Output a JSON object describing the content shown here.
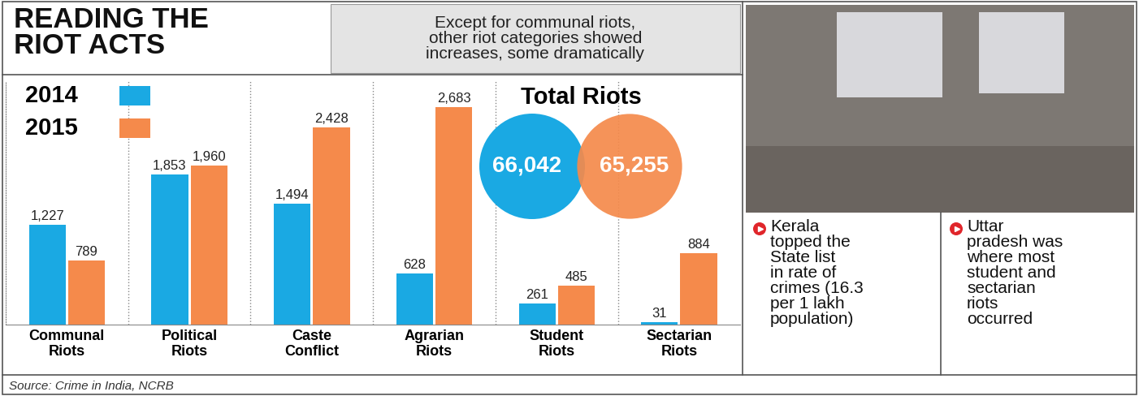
{
  "header": {
    "title": "READING THE\nRIOT ACTS",
    "subtitle": "Except for communal riots,\nother riot categories showed\nincreases, some dramatically"
  },
  "chart_data": {
    "type": "bar",
    "categories": [
      "Communal\nRiots",
      "Political\nRiots",
      "Caste\nConflict",
      "Agrarian\nRiots",
      "Student\nRiots",
      "Sectarian\nRiots"
    ],
    "series": [
      {
        "name": "2014",
        "color": "#1aa9e3",
        "values": [
          1227,
          1853,
          1494,
          628,
          261,
          31
        ],
        "value_labels": [
          "1,227",
          "1,853",
          "1,494",
          "628",
          "261",
          "31"
        ]
      },
      {
        "name": "2015",
        "color": "#f58a4b",
        "values": [
          789,
          1960,
          2428,
          2683,
          485,
          884
        ],
        "value_labels": [
          "789",
          "1,960",
          "2,428",
          "2,683",
          "485",
          "884"
        ]
      }
    ],
    "ylim": [
      0,
      3000
    ],
    "data_labels": true,
    "tick_labels": "x"
  },
  "totals": {
    "title": "Total Riots",
    "values": [
      66042,
      65255
    ],
    "value_labels": [
      "66,042",
      "65,255"
    ]
  },
  "notes": [
    "Kerala\ntopped the\nState list\nin rate of\ncrimes (16.3\nper 1 lakh\npopulation)",
    "Uttar\npradesh was\nwhere most\nstudent and\nsectarian\nriots\noccurred"
  ],
  "source": "Source: Crime in India, NCRB"
}
